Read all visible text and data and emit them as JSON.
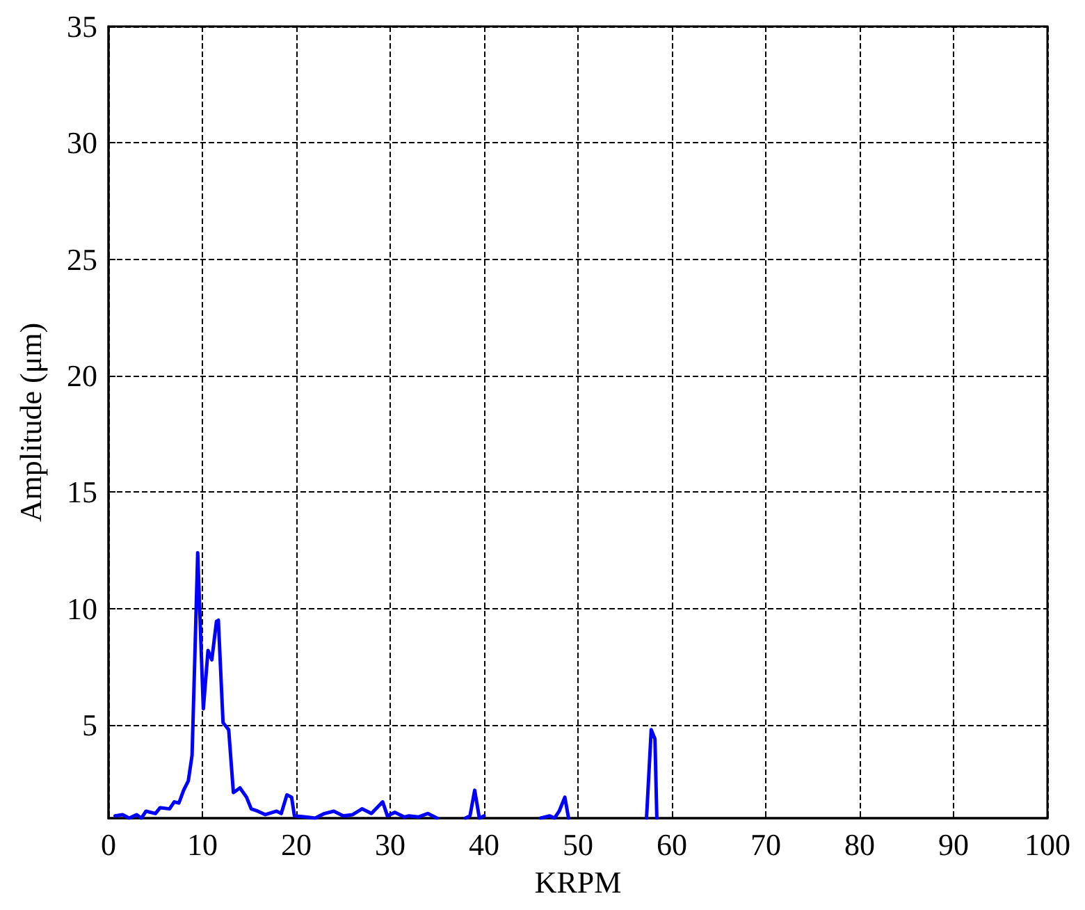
{
  "chart_data": {
    "type": "line",
    "xlabel": "KRPM",
    "ylabel": "Amplitude (μm)",
    "xlim": [
      0,
      100
    ],
    "ylim": [
      1,
      35
    ],
    "xticks": [
      0,
      10,
      20,
      30,
      40,
      50,
      60,
      70,
      80,
      90,
      100
    ],
    "yticks": [
      5,
      10,
      15,
      20,
      25,
      30,
      35
    ],
    "grid": true,
    "marker": "none",
    "line_style": "solid",
    "series": [
      {
        "color": "#0000ff",
        "x": [
          0.7,
          1.5,
          2.2,
          3,
          3.5,
          4,
          5,
          5.5,
          6.5,
          7,
          7.5,
          8,
          8.5,
          8.9,
          9.2,
          9.5,
          9.8,
          10.1,
          10.6,
          11,
          11.5,
          11.7,
          12.2,
          12.8,
          13.3,
          14,
          14.7,
          15.2,
          15.9,
          16.7,
          17.9,
          18.4,
          19,
          19.5,
          19.8,
          21,
          22,
          23,
          24,
          25,
          26,
          27,
          28,
          29.2,
          29.7,
          30.5,
          31.5,
          32,
          33,
          34,
          35,
          35.5,
          38,
          38.5,
          39,
          39.5,
          40,
          40.3,
          46,
          47,
          47.5,
          48,
          48.6,
          49,
          49.3,
          57.3,
          57.8,
          58.2,
          58.4
        ],
        "values": [
          1.1,
          1.15,
          1.0,
          1.15,
          1.0,
          1.3,
          1.2,
          1.45,
          1.4,
          1.7,
          1.65,
          2.2,
          2.6,
          3.7,
          8,
          12.4,
          9,
          5.7,
          8.2,
          7.8,
          9.45,
          9.5,
          5.1,
          4.8,
          2.1,
          2.3,
          1.9,
          1.4,
          1.3,
          1.15,
          1.3,
          1.2,
          2.0,
          1.9,
          1.1,
          1.05,
          1.0,
          1.2,
          1.3,
          1.1,
          1.15,
          1.4,
          1.2,
          1.7,
          1.1,
          1.25,
          1.05,
          1.1,
          1.05,
          1.2,
          1.0,
          null,
          1.0,
          1.1,
          2.2,
          1.0,
          1.1,
          null,
          1.0,
          1.1,
          1.0,
          1.3,
          1.9,
          1.0,
          null,
          1.0,
          4.8,
          4.4,
          1.0
        ]
      }
    ]
  }
}
